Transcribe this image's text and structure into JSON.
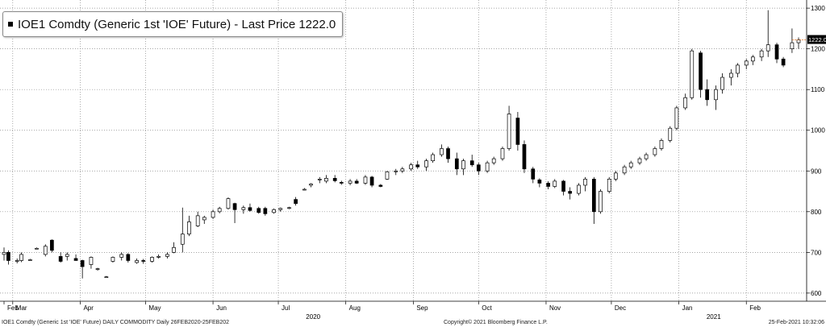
{
  "title": "IOE1 Comdty (Generic 1st 'IOE' Future) - Last Price 1222.0",
  "last_price_label": "1222.0",
  "footer": {
    "left": "IOE1 Comdty (Generic 1st 'IOE' Future) DAILY COMMODITY  Daily 26FEB2020-25FEB202",
    "center": "Copyright© 2021 Bloomberg Finance L.P.",
    "right": "25-Feb-2021 10:32:06"
  },
  "colors": {
    "up_body": "#ffffff",
    "down_body": "#000000",
    "wick": "#000000",
    "grid": "#888888",
    "last_price_line": "#e07020"
  },
  "chart_data": {
    "type": "candlestick",
    "title": "IOE1 Comdty (Generic 1st 'IOE' Future) - Last Price 1222.0",
    "ylim": [
      580,
      1320
    ],
    "y_ticks": [
      600,
      700,
      800,
      900,
      1000,
      1100,
      1200,
      1300
    ],
    "x_range": [
      "2020-02-26",
      "2021-02-25"
    ],
    "month_ticks": [
      {
        "label": "Feb",
        "date": "2020-02-26"
      },
      {
        "label": "Mar",
        "date": "2020-03-01"
      },
      {
        "label": "Apr",
        "date": "2020-04-01"
      },
      {
        "label": "May",
        "date": "2020-05-01"
      },
      {
        "label": "Jun",
        "date": "2020-06-01"
      },
      {
        "label": "Jul",
        "date": "2020-07-01"
      },
      {
        "label": "Aug",
        "date": "2020-08-01"
      },
      {
        "label": "Sep",
        "date": "2020-09-01"
      },
      {
        "label": "Oct",
        "date": "2020-10-01"
      },
      {
        "label": "Nov",
        "date": "2020-11-01"
      },
      {
        "label": "Dec",
        "date": "2020-12-01"
      },
      {
        "label": "Jan",
        "date": "2021-01-01"
      },
      {
        "label": "Feb",
        "date": "2021-02-01"
      }
    ],
    "year_labels": [
      {
        "label": "2020",
        "date": "2020-07-17"
      },
      {
        "label": "2021",
        "date": "2021-01-17"
      }
    ],
    "last_price": 1222.0,
    "series": [
      {
        "date": "2020-02-26",
        "o": 695,
        "h": 712,
        "l": 680,
        "c": 700
      },
      {
        "date": "2020-02-28",
        "o": 700,
        "h": 705,
        "l": 670,
        "c": 680
      },
      {
        "date": "2020-03-03",
        "o": 680,
        "h": 685,
        "l": 673,
        "c": 680
      },
      {
        "date": "2020-03-05",
        "o": 680,
        "h": 700,
        "l": 676,
        "c": 695
      },
      {
        "date": "2020-03-09",
        "o": 682,
        "h": 684,
        "l": 680,
        "c": 682
      },
      {
        "date": "2020-03-12",
        "o": 710,
        "h": 712,
        "l": 708,
        "c": 710
      },
      {
        "date": "2020-03-16",
        "o": 695,
        "h": 720,
        "l": 690,
        "c": 715
      },
      {
        "date": "2020-03-19",
        "o": 730,
        "h": 732,
        "l": 700,
        "c": 705
      },
      {
        "date": "2020-03-23",
        "o": 690,
        "h": 700,
        "l": 675,
        "c": 678
      },
      {
        "date": "2020-03-26",
        "o": 690,
        "h": 700,
        "l": 680,
        "c": 695
      },
      {
        "date": "2020-03-30",
        "o": 685,
        "h": 695,
        "l": 680,
        "c": 680
      },
      {
        "date": "2020-04-02",
        "o": 680,
        "h": 682,
        "l": 636,
        "c": 665
      },
      {
        "date": "2020-04-06",
        "o": 670,
        "h": 690,
        "l": 660,
        "c": 688
      },
      {
        "date": "2020-04-09",
        "o": 660,
        "h": 662,
        "l": 655,
        "c": 660
      },
      {
        "date": "2020-04-13",
        "o": 640,
        "h": 642,
        "l": 638,
        "c": 640
      },
      {
        "date": "2020-04-16",
        "o": 678,
        "h": 690,
        "l": 675,
        "c": 688
      },
      {
        "date": "2020-04-20",
        "o": 688,
        "h": 700,
        "l": 680,
        "c": 695
      },
      {
        "date": "2020-04-23",
        "o": 695,
        "h": 698,
        "l": 675,
        "c": 680
      },
      {
        "date": "2020-04-27",
        "o": 675,
        "h": 685,
        "l": 672,
        "c": 680
      },
      {
        "date": "2020-04-30",
        "o": 680,
        "h": 684,
        "l": 672,
        "c": 678
      },
      {
        "date": "2020-05-04",
        "o": 678,
        "h": 690,
        "l": 675,
        "c": 688
      },
      {
        "date": "2020-05-07",
        "o": 688,
        "h": 695,
        "l": 685,
        "c": 690
      },
      {
        "date": "2020-05-11",
        "o": 690,
        "h": 700,
        "l": 685,
        "c": 695
      },
      {
        "date": "2020-05-14",
        "o": 700,
        "h": 725,
        "l": 698,
        "c": 712
      },
      {
        "date": "2020-05-18",
        "o": 720,
        "h": 810,
        "l": 700,
        "c": 745
      },
      {
        "date": "2020-05-21",
        "o": 745,
        "h": 790,
        "l": 740,
        "c": 775
      },
      {
        "date": "2020-05-25",
        "o": 765,
        "h": 800,
        "l": 762,
        "c": 790
      },
      {
        "date": "2020-05-28",
        "o": 780,
        "h": 790,
        "l": 770,
        "c": 786
      },
      {
        "date": "2020-06-01",
        "o": 786,
        "h": 805,
        "l": 782,
        "c": 800
      },
      {
        "date": "2020-06-04",
        "o": 800,
        "h": 812,
        "l": 796,
        "c": 808
      },
      {
        "date": "2020-06-08",
        "o": 808,
        "h": 835,
        "l": 805,
        "c": 832
      },
      {
        "date": "2020-06-11",
        "o": 820,
        "h": 822,
        "l": 772,
        "c": 805
      },
      {
        "date": "2020-06-15",
        "o": 805,
        "h": 815,
        "l": 795,
        "c": 810
      },
      {
        "date": "2020-06-18",
        "o": 810,
        "h": 820,
        "l": 800,
        "c": 803
      },
      {
        "date": "2020-06-22",
        "o": 808,
        "h": 812,
        "l": 795,
        "c": 798
      },
      {
        "date": "2020-06-25",
        "o": 808,
        "h": 812,
        "l": 790,
        "c": 795
      },
      {
        "date": "2020-06-29",
        "o": 798,
        "h": 808,
        "l": 795,
        "c": 805
      },
      {
        "date": "2020-07-02",
        "o": 805,
        "h": 810,
        "l": 800,
        "c": 808
      },
      {
        "date": "2020-07-06",
        "o": 808,
        "h": 812,
        "l": 806,
        "c": 810
      },
      {
        "date": "2020-07-09",
        "o": 830,
        "h": 836,
        "l": 815,
        "c": 820
      },
      {
        "date": "2020-07-13",
        "o": 855,
        "h": 858,
        "l": 852,
        "c": 855
      },
      {
        "date": "2020-07-16",
        "o": 865,
        "h": 870,
        "l": 860,
        "c": 868
      },
      {
        "date": "2020-07-20",
        "o": 878,
        "h": 885,
        "l": 870,
        "c": 880
      },
      {
        "date": "2020-07-23",
        "o": 875,
        "h": 890,
        "l": 870,
        "c": 882
      },
      {
        "date": "2020-07-27",
        "o": 882,
        "h": 890,
        "l": 872,
        "c": 876
      },
      {
        "date": "2020-07-30",
        "o": 872,
        "h": 876,
        "l": 866,
        "c": 870
      },
      {
        "date": "2020-08-03",
        "o": 870,
        "h": 880,
        "l": 865,
        "c": 875
      },
      {
        "date": "2020-08-06",
        "o": 875,
        "h": 880,
        "l": 868,
        "c": 870
      },
      {
        "date": "2020-08-10",
        "o": 870,
        "h": 890,
        "l": 866,
        "c": 885
      },
      {
        "date": "2020-08-13",
        "o": 885,
        "h": 888,
        "l": 860,
        "c": 865
      },
      {
        "date": "2020-08-17",
        "o": 865,
        "h": 868,
        "l": 860,
        "c": 862
      },
      {
        "date": "2020-08-20",
        "o": 880,
        "h": 900,
        "l": 878,
        "c": 898
      },
      {
        "date": "2020-08-24",
        "o": 898,
        "h": 905,
        "l": 890,
        "c": 900
      },
      {
        "date": "2020-08-27",
        "o": 900,
        "h": 910,
        "l": 895,
        "c": 905
      },
      {
        "date": "2020-08-31",
        "o": 905,
        "h": 920,
        "l": 900,
        "c": 915
      },
      {
        "date": "2020-09-03",
        "o": 915,
        "h": 925,
        "l": 905,
        "c": 910
      },
      {
        "date": "2020-09-07",
        "o": 910,
        "h": 930,
        "l": 900,
        "c": 925
      },
      {
        "date": "2020-09-10",
        "o": 925,
        "h": 945,
        "l": 920,
        "c": 940
      },
      {
        "date": "2020-09-14",
        "o": 940,
        "h": 965,
        "l": 935,
        "c": 955
      },
      {
        "date": "2020-09-17",
        "o": 955,
        "h": 960,
        "l": 920,
        "c": 930
      },
      {
        "date": "2020-09-21",
        "o": 930,
        "h": 945,
        "l": 890,
        "c": 905
      },
      {
        "date": "2020-09-24",
        "o": 905,
        "h": 930,
        "l": 890,
        "c": 925
      },
      {
        "date": "2020-09-28",
        "o": 925,
        "h": 940,
        "l": 910,
        "c": 915
      },
      {
        "date": "2020-10-01",
        "o": 915,
        "h": 920,
        "l": 890,
        "c": 900
      },
      {
        "date": "2020-10-05",
        "o": 900,
        "h": 925,
        "l": 895,
        "c": 920
      },
      {
        "date": "2020-10-08",
        "o": 920,
        "h": 935,
        "l": 915,
        "c": 930
      },
      {
        "date": "2020-10-12",
        "o": 930,
        "h": 960,
        "l": 925,
        "c": 955
      },
      {
        "date": "2020-10-15",
        "o": 955,
        "h": 1060,
        "l": 950,
        "c": 1040
      },
      {
        "date": "2020-10-19",
        "o": 1030,
        "h": 1045,
        "l": 950,
        "c": 965
      },
      {
        "date": "2020-10-22",
        "o": 965,
        "h": 975,
        "l": 895,
        "c": 905
      },
      {
        "date": "2020-10-26",
        "o": 905,
        "h": 910,
        "l": 870,
        "c": 880
      },
      {
        "date": "2020-10-29",
        "o": 878,
        "h": 882,
        "l": 860,
        "c": 870
      },
      {
        "date": "2020-11-02",
        "o": 870,
        "h": 875,
        "l": 855,
        "c": 862
      },
      {
        "date": "2020-11-05",
        "o": 862,
        "h": 880,
        "l": 858,
        "c": 875
      },
      {
        "date": "2020-11-09",
        "o": 875,
        "h": 878,
        "l": 840,
        "c": 850
      },
      {
        "date": "2020-11-12",
        "o": 850,
        "h": 860,
        "l": 830,
        "c": 845
      },
      {
        "date": "2020-11-16",
        "o": 845,
        "h": 870,
        "l": 840,
        "c": 865
      },
      {
        "date": "2020-11-19",
        "o": 865,
        "h": 885,
        "l": 850,
        "c": 880
      },
      {
        "date": "2020-11-23",
        "o": 880,
        "h": 885,
        "l": 770,
        "c": 800
      },
      {
        "date": "2020-11-26",
        "o": 800,
        "h": 855,
        "l": 795,
        "c": 850
      },
      {
        "date": "2020-11-30",
        "o": 850,
        "h": 885,
        "l": 845,
        "c": 880
      },
      {
        "date": "2020-12-03",
        "o": 880,
        "h": 900,
        "l": 875,
        "c": 895
      },
      {
        "date": "2020-12-07",
        "o": 895,
        "h": 915,
        "l": 890,
        "c": 910
      },
      {
        "date": "2020-12-10",
        "o": 910,
        "h": 925,
        "l": 905,
        "c": 920
      },
      {
        "date": "2020-12-14",
        "o": 920,
        "h": 935,
        "l": 915,
        "c": 930
      },
      {
        "date": "2020-12-17",
        "o": 930,
        "h": 945,
        "l": 925,
        "c": 940
      },
      {
        "date": "2020-12-21",
        "o": 940,
        "h": 960,
        "l": 935,
        "c": 955
      },
      {
        "date": "2020-12-24",
        "o": 955,
        "h": 980,
        "l": 950,
        "c": 975
      },
      {
        "date": "2020-12-28",
        "o": 975,
        "h": 1010,
        "l": 970,
        "c": 1005
      },
      {
        "date": "2020-12-31",
        "o": 1005,
        "h": 1060,
        "l": 1000,
        "c": 1055
      },
      {
        "date": "2021-01-04",
        "o": 1055,
        "h": 1090,
        "l": 1050,
        "c": 1080
      },
      {
        "date": "2021-01-07",
        "o": 1080,
        "h": 1200,
        "l": 1075,
        "c": 1195
      },
      {
        "date": "2021-01-11",
        "o": 1190,
        "h": 1195,
        "l": 1080,
        "c": 1100
      },
      {
        "date": "2021-01-14",
        "o": 1100,
        "h": 1125,
        "l": 1060,
        "c": 1075
      },
      {
        "date": "2021-01-18",
        "o": 1075,
        "h": 1110,
        "l": 1050,
        "c": 1100
      },
      {
        "date": "2021-01-21",
        "o": 1100,
        "h": 1140,
        "l": 1090,
        "c": 1130
      },
      {
        "date": "2021-01-25",
        "o": 1130,
        "h": 1150,
        "l": 1110,
        "c": 1140
      },
      {
        "date": "2021-01-28",
        "o": 1140,
        "h": 1165,
        "l": 1130,
        "c": 1160
      },
      {
        "date": "2021-02-01",
        "o": 1160,
        "h": 1175,
        "l": 1150,
        "c": 1170
      },
      {
        "date": "2021-02-04",
        "o": 1170,
        "h": 1185,
        "l": 1160,
        "c": 1180
      },
      {
        "date": "2021-02-08",
        "o": 1180,
        "h": 1200,
        "l": 1170,
        "c": 1195
      },
      {
        "date": "2021-02-11",
        "o": 1195,
        "h": 1295,
        "l": 1180,
        "c": 1210
      },
      {
        "date": "2021-02-15",
        "o": 1210,
        "h": 1215,
        "l": 1165,
        "c": 1175
      },
      {
        "date": "2021-02-18",
        "o": 1175,
        "h": 1180,
        "l": 1155,
        "c": 1160
      },
      {
        "date": "2021-02-22",
        "o": 1200,
        "h": 1250,
        "l": 1190,
        "c": 1215
      },
      {
        "date": "2021-02-25",
        "o": 1215,
        "h": 1228,
        "l": 1200,
        "c": 1222
      }
    ]
  }
}
